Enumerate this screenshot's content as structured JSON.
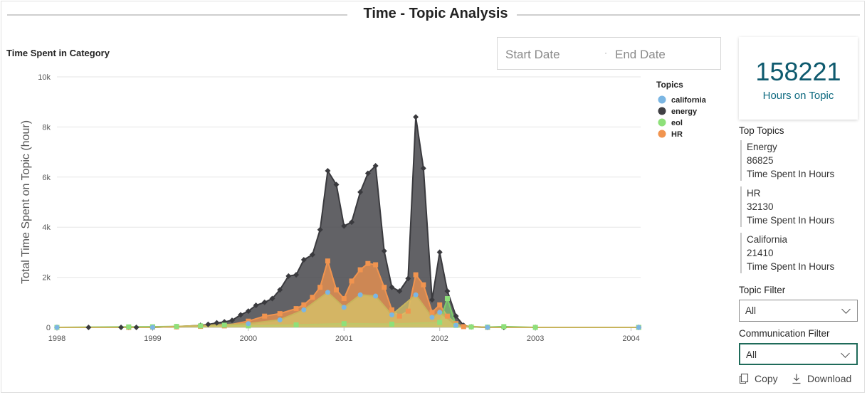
{
  "page": {
    "title": "Time - Topic Analysis"
  },
  "chart_section": {
    "title": "Time Spent in Category"
  },
  "date_range": {
    "start_placeholder": "Start Date",
    "end_placeholder": "End Date"
  },
  "kpi": {
    "value": "158221",
    "label": "Hours on Topic"
  },
  "top_topics": {
    "title": "Top Topics",
    "items": [
      {
        "name": "Energy",
        "value": "86825",
        "unit": "Time Spent In Hours"
      },
      {
        "name": "HR",
        "value": "32130",
        "unit": "Time Spent In Hours"
      },
      {
        "name": "California",
        "value": "21410",
        "unit": "Time Spent In Hours"
      }
    ]
  },
  "filters": {
    "topic": {
      "label": "Topic Filter",
      "value": "All"
    },
    "communication": {
      "label": "Communication Filter",
      "value": "All"
    }
  },
  "actions": {
    "copy": "Copy",
    "download": "Download"
  },
  "chart_data": {
    "type": "area",
    "title": "",
    "ylabel": "Total Time Spent on Topic (hour)",
    "xlabel": "",
    "ylim": [
      0,
      10000
    ],
    "yticks": [
      0,
      2000,
      4000,
      6000,
      8000,
      10000
    ],
    "ytick_labels": [
      "0",
      "2k",
      "4k",
      "6k",
      "8k",
      "10k"
    ],
    "xlim": [
      1998.0,
      2004.1
    ],
    "xticks": [
      1998,
      1999,
      2000,
      2001,
      2002,
      2003,
      2004
    ],
    "xtick_labels": [
      "1998",
      "1999",
      "2000",
      "2001",
      "2002",
      "2003",
      "2004"
    ],
    "legend": {
      "title": "Topics",
      "position": "top-right"
    },
    "grid": "horizontal",
    "series": [
      {
        "name": "energy",
        "color": "#47474b",
        "marker": "diamond",
        "points": [
          [
            1998.0,
            0
          ],
          [
            1998.33,
            0
          ],
          [
            1998.67,
            0
          ],
          [
            1998.75,
            0
          ],
          [
            1998.83,
            0
          ],
          [
            1999.0,
            0
          ],
          [
            1999.25,
            30
          ],
          [
            1999.5,
            80
          ],
          [
            1999.58,
            120
          ],
          [
            1999.67,
            180
          ],
          [
            1999.75,
            220
          ],
          [
            1999.83,
            280
          ],
          [
            1999.92,
            500
          ],
          [
            2000.0,
            650
          ],
          [
            2000.08,
            880
          ],
          [
            2000.17,
            1000
          ],
          [
            2000.25,
            1150
          ],
          [
            2000.33,
            1500
          ],
          [
            2000.42,
            2050
          ],
          [
            2000.5,
            2100
          ],
          [
            2000.58,
            2700
          ],
          [
            2000.67,
            2900
          ],
          [
            2000.75,
            3900
          ],
          [
            2000.83,
            6250
          ],
          [
            2000.92,
            5700
          ],
          [
            2001.0,
            4050
          ],
          [
            2001.08,
            4200
          ],
          [
            2001.17,
            5400
          ],
          [
            2001.25,
            6150
          ],
          [
            2001.33,
            6450
          ],
          [
            2001.42,
            3050
          ],
          [
            2001.5,
            1600
          ],
          [
            2001.58,
            1450
          ],
          [
            2001.67,
            1950
          ],
          [
            2001.75,
            8400
          ],
          [
            2001.83,
            6350
          ],
          [
            2001.92,
            1100
          ],
          [
            2002.0,
            3000
          ],
          [
            2002.08,
            1450
          ],
          [
            2002.17,
            450
          ],
          [
            2002.25,
            80
          ],
          [
            2002.33,
            20
          ],
          [
            2002.5,
            0
          ],
          [
            2002.67,
            0
          ],
          [
            2003.0,
            0
          ],
          [
            2004.08,
            0
          ]
        ]
      },
      {
        "name": "HR",
        "color": "#f1944f",
        "marker": "square",
        "points": [
          [
            1998.0,
            0
          ],
          [
            1998.75,
            0
          ],
          [
            1999.0,
            10
          ],
          [
            1999.25,
            20
          ],
          [
            1999.5,
            40
          ],
          [
            1999.75,
            60
          ],
          [
            2000.0,
            250
          ],
          [
            2000.17,
            450
          ],
          [
            2000.33,
            550
          ],
          [
            2000.5,
            750
          ],
          [
            2000.58,
            900
          ],
          [
            2000.67,
            1200
          ],
          [
            2000.75,
            1600
          ],
          [
            2000.83,
            2650
          ],
          [
            2000.92,
            1500
          ],
          [
            2001.0,
            1150
          ],
          [
            2001.08,
            1850
          ],
          [
            2001.17,
            2300
          ],
          [
            2001.25,
            2550
          ],
          [
            2001.33,
            2500
          ],
          [
            2001.42,
            1600
          ],
          [
            2001.5,
            700
          ],
          [
            2001.58,
            450
          ],
          [
            2001.67,
            650
          ],
          [
            2001.75,
            2100
          ],
          [
            2001.83,
            1700
          ],
          [
            2001.92,
            600
          ],
          [
            2002.0,
            900
          ],
          [
            2002.08,
            450
          ],
          [
            2002.17,
            150
          ],
          [
            2002.25,
            30
          ],
          [
            2002.5,
            0
          ],
          [
            2004.08,
            0
          ]
        ]
      },
      {
        "name": "eol",
        "color": "#8ee07a",
        "marker": "square",
        "points": [
          [
            1998.0,
            0
          ],
          [
            1998.75,
            20
          ],
          [
            1999.0,
            25
          ],
          [
            1999.25,
            40
          ],
          [
            1999.5,
            60
          ],
          [
            1999.75,
            90
          ],
          [
            2000.0,
            60
          ],
          [
            2000.5,
            100
          ],
          [
            2001.0,
            150
          ],
          [
            2001.5,
            130
          ],
          [
            2002.0,
            200
          ],
          [
            2002.08,
            1150
          ],
          [
            2002.17,
            80
          ],
          [
            2002.33,
            20
          ],
          [
            2002.5,
            10
          ],
          [
            2002.67,
            30
          ],
          [
            2003.0,
            0
          ],
          [
            2004.08,
            0
          ]
        ]
      },
      {
        "name": "california",
        "color": "#7bb6e3",
        "marker": "circle",
        "points": [
          [
            1998.0,
            0
          ],
          [
            1999.0,
            0
          ],
          [
            2000.0,
            150
          ],
          [
            2000.33,
            300
          ],
          [
            2000.58,
            700
          ],
          [
            2000.83,
            1400
          ],
          [
            2001.0,
            800
          ],
          [
            2001.17,
            1300
          ],
          [
            2001.33,
            1250
          ],
          [
            2001.5,
            500
          ],
          [
            2001.75,
            1300
          ],
          [
            2001.92,
            400
          ],
          [
            2002.0,
            600
          ],
          [
            2002.17,
            80
          ],
          [
            2002.5,
            0
          ],
          [
            2004.08,
            0
          ]
        ]
      }
    ]
  },
  "legend_order": [
    "california",
    "energy",
    "eol",
    "HR"
  ],
  "legend_colors": {
    "california": "#7bb6e3",
    "energy": "#404044",
    "eol": "#8ee07a",
    "HR": "#f1944f"
  }
}
